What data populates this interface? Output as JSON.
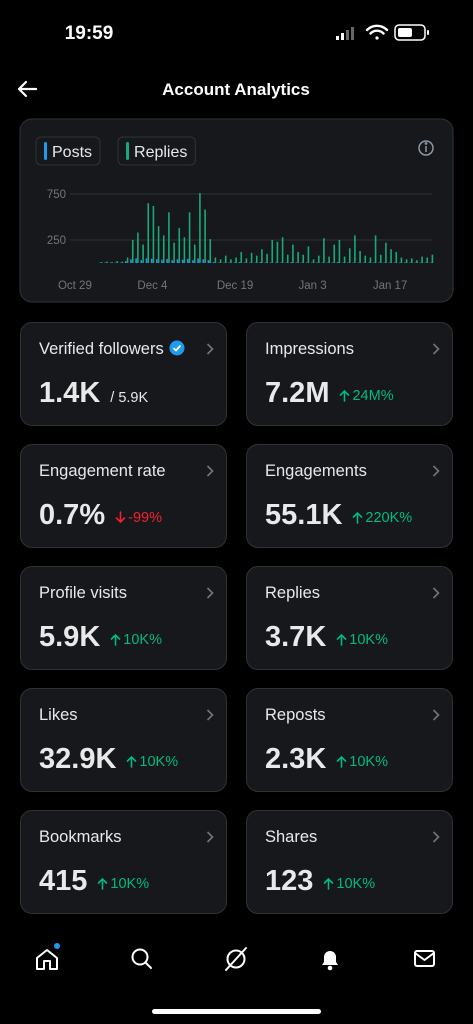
{
  "status_bar": {
    "time": "19:59"
  },
  "header": {
    "title": "Account Analytics"
  },
  "chart_data": {
    "type": "bar",
    "categories": [
      null,
      null,
      "Oct 29",
      null,
      null,
      null,
      null,
      null,
      null,
      null,
      null,
      null,
      null,
      null,
      null,
      null,
      null,
      "Dec 4",
      null,
      null,
      null,
      null,
      null,
      null,
      null,
      null,
      null,
      null,
      null,
      null,
      null,
      null,
      null,
      "Dec 19",
      null,
      null,
      null,
      null,
      null,
      null,
      null,
      null,
      null,
      null,
      null,
      null,
      null,
      null,
      "Jan 3",
      null,
      null,
      null,
      null,
      null,
      null,
      null,
      null,
      null,
      null,
      null,
      null,
      null,
      null,
      "Jan 17",
      null,
      null,
      null,
      null,
      null,
      null,
      null,
      null
    ],
    "series": [
      {
        "name": "Posts",
        "color": "#1d9bf0",
        "values": [
          0,
          0,
          0,
          0,
          0,
          0,
          0,
          5,
          5,
          5,
          5,
          5,
          20,
          40,
          50,
          30,
          50,
          45,
          40,
          35,
          45,
          30,
          40,
          35,
          45,
          30,
          50,
          40,
          30,
          10,
          5,
          5,
          5,
          5,
          10,
          5,
          5,
          5,
          10,
          5,
          5,
          5,
          5,
          5,
          10,
          5,
          5,
          5,
          5,
          5,
          5,
          5,
          5,
          10,
          5,
          5,
          5,
          5,
          5,
          5,
          5,
          5,
          5,
          5,
          5,
          5,
          5,
          5,
          5,
          5,
          5,
          5
        ]
      },
      {
        "name": "Replies",
        "color": "#1aa876",
        "values": [
          0,
          0,
          0,
          0,
          0,
          0,
          0,
          10,
          15,
          10,
          20,
          15,
          60,
          250,
          330,
          200,
          650,
          620,
          400,
          300,
          550,
          220,
          380,
          280,
          550,
          200,
          760,
          580,
          260,
          60,
          40,
          80,
          40,
          60,
          120,
          50,
          110,
          80,
          150,
          100,
          250,
          230,
          280,
          90,
          200,
          120,
          90,
          180,
          40,
          80,
          270,
          70,
          200,
          250,
          70,
          160,
          300,
          130,
          80,
          60,
          300,
          90,
          220,
          150,
          120,
          60,
          40,
          50,
          30,
          70,
          60,
          90
        ]
      }
    ],
    "ylim": [
      0,
      850
    ],
    "yticks": [
      250,
      750
    ],
    "grid": true
  },
  "cards": [
    {
      "label": "Verified followers",
      "value": "1.4K",
      "sub": "/ 5.9K",
      "verified": true
    },
    {
      "label": "Impressions",
      "value": "7.2M",
      "change": "24M%",
      "direction": "up"
    },
    {
      "label": "Engagement rate",
      "value": "0.7%",
      "change": "-99%",
      "direction": "down"
    },
    {
      "label": "Engagements",
      "value": "55.1K",
      "change": "220K%",
      "direction": "up"
    },
    {
      "label": "Profile visits",
      "value": "5.9K",
      "change": "10K%",
      "direction": "up"
    },
    {
      "label": "Replies",
      "value": "3.7K",
      "change": "10K%",
      "direction": "up"
    },
    {
      "label": "Likes",
      "value": "32.9K",
      "change": "10K%",
      "direction": "up"
    },
    {
      "label": "Reposts",
      "value": "2.3K",
      "change": "10K%",
      "direction": "up"
    },
    {
      "label": "Bookmarks",
      "value": "415",
      "change": "10K%",
      "direction": "up"
    },
    {
      "label": "Shares",
      "value": "123",
      "change": "10K%",
      "direction": "up"
    }
  ]
}
